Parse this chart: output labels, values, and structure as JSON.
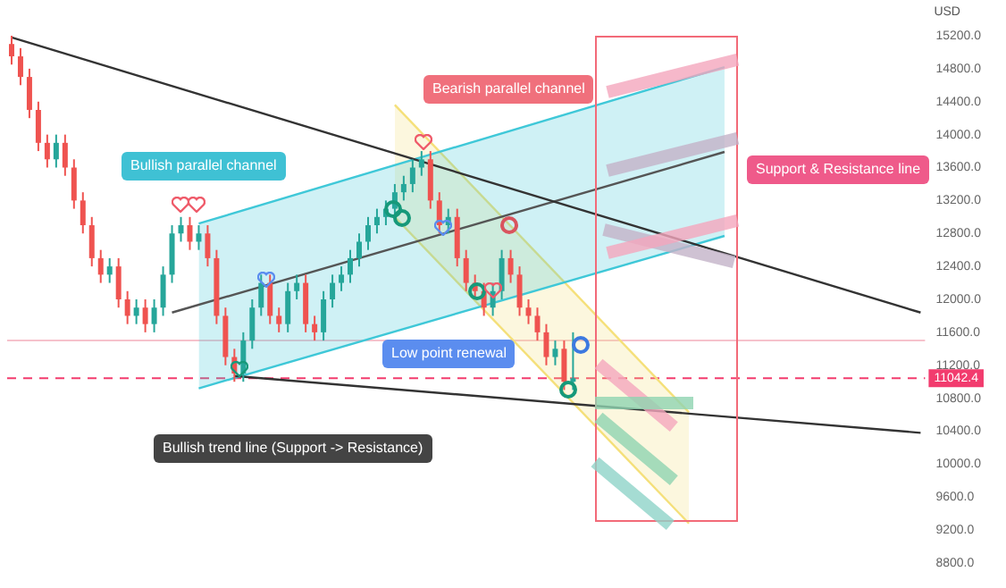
{
  "chart_data": {
    "type": "candlestick",
    "ylabel": "USD",
    "categories": [
      null,
      null,
      null,
      null,
      null,
      null,
      null,
      null,
      null,
      null,
      null,
      null,
      null,
      null,
      null,
      null,
      null,
      null,
      null,
      null,
      null,
      null,
      null,
      null,
      null,
      null,
      null,
      null,
      null,
      null,
      null,
      null,
      null,
      null,
      null,
      null,
      null,
      null,
      null,
      null,
      null,
      null,
      null,
      null,
      null,
      null,
      null,
      null,
      null,
      null,
      null,
      null,
      null,
      null,
      null,
      null,
      null,
      null,
      null,
      null,
      null,
      null,
      null,
      null,
      null,
      null,
      null,
      null,
      null,
      null,
      null,
      null,
      null,
      null,
      null,
      null,
      null,
      null,
      null,
      null,
      null,
      null,
      null,
      null,
      null,
      null,
      null,
      null,
      null,
      null,
      null,
      null,
      null,
      null,
      null,
      null,
      null,
      null,
      null,
      null,
      null,
      null,
      null
    ],
    "ohlc": [
      [
        15100,
        15200,
        14850,
        14950
      ],
      [
        14950,
        15050,
        14600,
        14700
      ],
      [
        14700,
        14800,
        14200,
        14300
      ],
      [
        14300,
        14400,
        13800,
        13900
      ],
      [
        13900,
        14000,
        13600,
        13700
      ],
      [
        13700,
        14000,
        13600,
        13900
      ],
      [
        13900,
        14000,
        13500,
        13600
      ],
      [
        13600,
        13700,
        13100,
        13200
      ],
      [
        13200,
        13300,
        12800,
        12900
      ],
      [
        12900,
        13000,
        12400,
        12500
      ],
      [
        12500,
        12600,
        12200,
        12300
      ],
      [
        12300,
        12500,
        12200,
        12400
      ],
      [
        12400,
        12500,
        11900,
        12000
      ],
      [
        12000,
        12100,
        11700,
        11800
      ],
      [
        11800,
        12000,
        11700,
        11900
      ],
      [
        11900,
        12000,
        11600,
        11700
      ],
      [
        11700,
        12000,
        11600,
        11900
      ],
      [
        11900,
        12400,
        11800,
        12300
      ],
      [
        12300,
        12900,
        12200,
        12800
      ],
      [
        12800,
        13000,
        12700,
        12900
      ],
      [
        12900,
        13000,
        12600,
        12700
      ],
      [
        12700,
        12900,
        12600,
        12800
      ],
      [
        12800,
        12900,
        12400,
        12500
      ],
      [
        12500,
        12600,
        11700,
        11800
      ],
      [
        11800,
        11900,
        11200,
        11300
      ],
      [
        11300,
        11400,
        11000,
        11100
      ],
      [
        11100,
        11600,
        11000,
        11500
      ],
      [
        11500,
        12000,
        11400,
        11900
      ],
      [
        11900,
        12300,
        11800,
        12200
      ],
      [
        12200,
        12300,
        11700,
        11800
      ],
      [
        11800,
        11900,
        11600,
        11700
      ],
      [
        11700,
        12200,
        11600,
        12100
      ],
      [
        12100,
        12300,
        12000,
        12200
      ],
      [
        12200,
        12300,
        11600,
        11700
      ],
      [
        11700,
        11800,
        11500,
        11600
      ],
      [
        11600,
        12100,
        11500,
        12000
      ],
      [
        12000,
        12300,
        11900,
        12200
      ],
      [
        12200,
        12400,
        12100,
        12300
      ],
      [
        12300,
        12600,
        12200,
        12500
      ],
      [
        12500,
        12800,
        12400,
        12700
      ],
      [
        12700,
        13000,
        12600,
        12900
      ],
      [
        12900,
        13100,
        12800,
        13000
      ],
      [
        13000,
        13200,
        12900,
        13100
      ],
      [
        13100,
        13400,
        13000,
        13300
      ],
      [
        13300,
        13500,
        13200,
        13400
      ],
      [
        13400,
        13700,
        13300,
        13600
      ],
      [
        13600,
        13800,
        13500,
        13700
      ],
      [
        13700,
        13800,
        13100,
        13200
      ],
      [
        13200,
        13300,
        12800,
        12900
      ],
      [
        12900,
        13100,
        12800,
        13000
      ],
      [
        13000,
        13100,
        12400,
        12500
      ],
      [
        12500,
        12600,
        12100,
        12200
      ],
      [
        12200,
        12300,
        12000,
        12100
      ],
      [
        12100,
        12200,
        11800,
        11900
      ],
      [
        11900,
        12200,
        11800,
        12100
      ],
      [
        12100,
        12600,
        12000,
        12500
      ],
      [
        12500,
        12600,
        12200,
        12300
      ],
      [
        12300,
        12400,
        11800,
        11900
      ],
      [
        11900,
        12000,
        11700,
        11800
      ],
      [
        11800,
        11900,
        11500,
        11600
      ],
      [
        11600,
        11700,
        11200,
        11300
      ],
      [
        11300,
        11500,
        11200,
        11400
      ],
      [
        11400,
        11500,
        10900,
        11000
      ],
      [
        11000,
        11600,
        10900,
        11042.4
      ],
      null,
      null,
      null,
      null,
      null,
      null,
      null,
      null,
      null,
      null,
      null,
      null,
      null,
      null,
      null,
      null,
      null,
      null,
      null,
      null,
      null,
      null,
      null,
      null,
      null,
      null,
      null,
      null,
      null,
      null,
      null,
      null,
      null,
      null,
      null,
      null,
      null,
      null,
      null
    ],
    "series": [
      {
        "type": "line",
        "color": "#333333",
        "values": [
          15180,
          null,
          null,
          null,
          null,
          null,
          null,
          null,
          null,
          null,
          null,
          null,
          null,
          null,
          null,
          null,
          null,
          null,
          null,
          null,
          null,
          null,
          null,
          null,
          null,
          null,
          null,
          null,
          null,
          null,
          null,
          null,
          null,
          null,
          null,
          null,
          null,
          null,
          null,
          null,
          null,
          null,
          null,
          null,
          null,
          null,
          null,
          null,
          null,
          null,
          null,
          null,
          null,
          null,
          null,
          null,
          null,
          null,
          null,
          null,
          null,
          null,
          null,
          null,
          null,
          null,
          null,
          null,
          null,
          null,
          null,
          null,
          null,
          null,
          null,
          null,
          null,
          null,
          null,
          null,
          null,
          null,
          null,
          null,
          null,
          null,
          null,
          null,
          null,
          null,
          null,
          null,
          null,
          null,
          null,
          null,
          null,
          null,
          null,
          null,
          null,
          null,
          11840
        ]
      },
      {
        "type": "line",
        "color": "#333333",
        "values": [
          null,
          null,
          null,
          null,
          null,
          null,
          null,
          null,
          null,
          null,
          null,
          null,
          null,
          null,
          null,
          null,
          null,
          null,
          null,
          null,
          null,
          null,
          null,
          null,
          null,
          11070,
          null,
          null,
          null,
          null,
          null,
          null,
          null,
          null,
          null,
          null,
          null,
          null,
          null,
          null,
          null,
          null,
          null,
          null,
          null,
          null,
          null,
          null,
          null,
          null,
          null,
          null,
          null,
          null,
          null,
          null,
          null,
          null,
          null,
          null,
          null,
          null,
          null,
          null,
          null,
          null,
          null,
          null,
          null,
          null,
          null,
          null,
          null,
          null,
          null,
          null,
          null,
          null,
          null,
          null,
          null,
          null,
          null,
          null,
          null,
          null,
          null,
          null,
          null,
          null,
          null,
          null,
          null,
          null,
          null,
          null,
          null,
          null,
          null,
          null,
          null,
          null,
          10380
        ]
      },
      {
        "type": "line",
        "color": "#555555",
        "values": [
          null,
          null,
          null,
          null,
          null,
          null,
          null,
          null,
          null,
          null,
          null,
          null,
          null,
          null,
          null,
          null,
          null,
          null,
          11840,
          null,
          null,
          null,
          null,
          null,
          null,
          null,
          null,
          null,
          null,
          null,
          null,
          null,
          null,
          null,
          null,
          null,
          null,
          null,
          null,
          null,
          null,
          null,
          null,
          null,
          null,
          null,
          null,
          null,
          null,
          null,
          null,
          null,
          null,
          null,
          null,
          null,
          null,
          null,
          null,
          null,
          null,
          null,
          null,
          null,
          null,
          null,
          null,
          null,
          null,
          null,
          null,
          null,
          null,
          null,
          null,
          null,
          null,
          null,
          null,
          null,
          13790,
          null,
          null,
          null,
          null,
          null,
          null,
          null,
          null,
          null,
          null,
          null,
          null,
          null,
          null,
          null,
          null,
          null,
          null,
          null,
          null,
          null,
          null
        ]
      },
      {
        "type": "area",
        "color": "#3fc8d8",
        "values": [
          null,
          null,
          null,
          null,
          null,
          null,
          null,
          null,
          null,
          null,
          null,
          null,
          null,
          null,
          null,
          null,
          null,
          null,
          null,
          null,
          null,
          12920,
          null,
          null,
          null,
          null,
          null,
          null,
          null,
          null,
          null,
          null,
          null,
          null,
          null,
          null,
          null,
          null,
          null,
          null,
          null,
          null,
          null,
          null,
          null,
          null,
          null,
          null,
          null,
          null,
          null,
          null,
          null,
          null,
          null,
          null,
          null,
          null,
          null,
          null,
          null,
          null,
          null,
          null,
          null,
          null,
          null,
          null,
          null,
          null,
          null,
          null,
          null,
          null,
          null,
          null,
          null,
          null,
          null,
          null,
          14820,
          null,
          null,
          null,
          null,
          null,
          null,
          null,
          null,
          null,
          null,
          null,
          null,
          null,
          null,
          null,
          null,
          null,
          null,
          null,
          null,
          null,
          null
        ]
      },
      {
        "type": "line",
        "color": "#3fc8d8",
        "values": [
          null,
          null,
          null,
          null,
          null,
          null,
          null,
          null,
          null,
          null,
          null,
          null,
          null,
          null,
          null,
          null,
          null,
          null,
          null,
          null,
          null,
          10920,
          null,
          null,
          null,
          null,
          null,
          null,
          null,
          null,
          null,
          null,
          null,
          null,
          null,
          null,
          null,
          null,
          null,
          null,
          null,
          null,
          null,
          null,
          null,
          null,
          null,
          null,
          null,
          null,
          null,
          null,
          null,
          null,
          null,
          null,
          null,
          null,
          null,
          null,
          null,
          null,
          null,
          null,
          null,
          null,
          null,
          null,
          null,
          null,
          null,
          null,
          null,
          null,
          null,
          null,
          null,
          null,
          null,
          null,
          12770,
          null,
          null,
          null,
          null,
          null,
          null,
          null,
          null,
          null,
          null,
          null,
          null,
          null,
          null,
          null,
          null,
          null,
          null,
          null,
          null,
          null,
          null
        ]
      },
      {
        "type": "area",
        "color": "#f5e07a",
        "values": [
          null,
          null,
          null,
          null,
          null,
          null,
          null,
          null,
          null,
          null,
          null,
          null,
          null,
          null,
          null,
          null,
          null,
          null,
          null,
          null,
          null,
          null,
          null,
          null,
          null,
          null,
          null,
          null,
          null,
          null,
          null,
          null,
          null,
          null,
          null,
          null,
          null,
          null,
          null,
          null,
          null,
          null,
          null,
          14360,
          null,
          null,
          null,
          null,
          null,
          null,
          null,
          null,
          null,
          null,
          null,
          null,
          null,
          null,
          null,
          null,
          null,
          null,
          null,
          null,
          null,
          null,
          null,
          null,
          null,
          null,
          null,
          null,
          null,
          null,
          null,
          null,
          10630,
          null,
          null,
          null,
          null,
          null,
          null,
          null,
          null,
          null,
          null,
          null,
          null,
          null,
          null,
          null,
          null,
          null,
          null,
          null,
          null,
          null,
          null,
          null,
          null,
          null,
          null
        ]
      },
      {
        "type": "line",
        "color": "#f5e07a",
        "values": [
          null,
          null,
          null,
          null,
          null,
          null,
          null,
          null,
          null,
          null,
          null,
          null,
          null,
          null,
          null,
          null,
          null,
          null,
          null,
          null,
          null,
          null,
          null,
          null,
          null,
          null,
          null,
          null,
          null,
          null,
          null,
          null,
          null,
          null,
          null,
          null,
          null,
          null,
          null,
          null,
          null,
          null,
          null,
          13000,
          null,
          null,
          null,
          null,
          null,
          null,
          null,
          null,
          null,
          null,
          null,
          null,
          null,
          null,
          null,
          null,
          null,
          null,
          null,
          null,
          null,
          null,
          null,
          null,
          null,
          null,
          null,
          null,
          null,
          null,
          null,
          null,
          9280,
          null,
          null,
          null,
          null,
          null,
          null,
          null,
          null,
          null,
          null,
          null,
          null,
          null,
          null,
          null,
          null,
          null,
          null,
          null,
          null,
          null,
          null,
          null,
          null,
          null,
          null
        ]
      }
    ],
    "ylim": [
      8800,
      15200
    ],
    "yticks": [
      {
        "value": 8800,
        "label": "8800.0"
      },
      {
        "value": 9200,
        "label": "9200.0"
      },
      {
        "value": 9600,
        "label": "9600.0"
      },
      {
        "value": 10000,
        "label": "10000.0"
      },
      {
        "value": 10400,
        "label": "10400.0"
      },
      {
        "value": 10800,
        "label": "10800.0"
      },
      {
        "value": 11200,
        "label": "11200.0"
      },
      {
        "value": 11600,
        "label": "11600.0"
      },
      {
        "value": 12000,
        "label": "12000.0"
      },
      {
        "value": 12400,
        "label": "12400.0"
      },
      {
        "value": 12800,
        "label": "12800.0"
      },
      {
        "value": 13200,
        "label": "13200.0"
      },
      {
        "value": 13600,
        "label": "13600.0"
      },
      {
        "value": 14000,
        "label": "14000.0"
      },
      {
        "value": 14400,
        "label": "14400.0"
      },
      {
        "value": 14800,
        "label": "14800.0"
      },
      {
        "value": 15200,
        "label": "15200.0"
      }
    ],
    "tick_labels": "y",
    "grid": false,
    "legend": false,
    "ref_lines": [
      {
        "axis": "y",
        "value": 11042.4,
        "label": "11042.4",
        "color": "#f23c6e",
        "line_style": "dashed"
      },
      {
        "axis": "y",
        "value": 11500,
        "color": "#f6c2cc",
        "line_style": "solid"
      }
    ],
    "annotations": [
      "Bullish parallel channel",
      "Bearish parallel channel",
      "Support & Resistance line",
      "Low point renewal",
      "Bullish trend line (Support -> Resistance)"
    ]
  }
}
